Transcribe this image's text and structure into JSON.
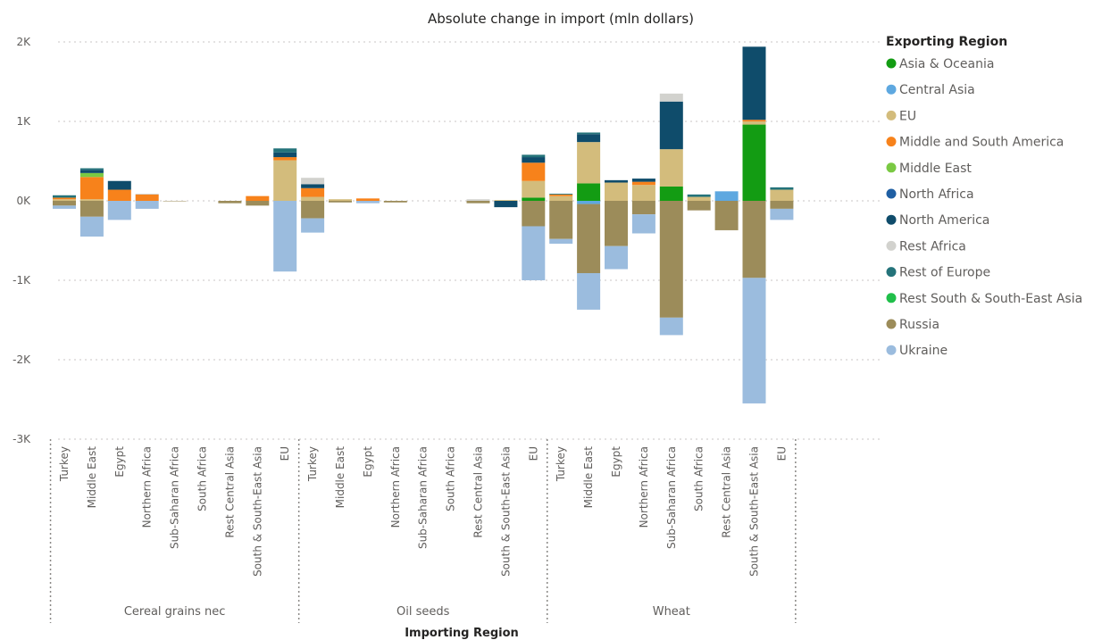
{
  "chart_data": {
    "type": "bar",
    "stacked": true,
    "title": "Absolute change in import (mln dollars)",
    "xlabel": "Importing Region",
    "ylabel": "",
    "ylim": [
      -3000,
      2000
    ],
    "yticks": [
      {
        "value": 2000,
        "label": "2K"
      },
      {
        "value": 1000,
        "label": "1K"
      },
      {
        "value": 0,
        "label": "0K"
      },
      {
        "value": -1000,
        "label": "-1K"
      },
      {
        "value": -2000,
        "label": "-2K"
      },
      {
        "value": -3000,
        "label": "-3K"
      }
    ],
    "grid": true,
    "legend_title": "Exporting Region",
    "legend_position": "right",
    "series": [
      {
        "name": "Asia & Oceania",
        "color": "#139c13"
      },
      {
        "name": "Central Asia",
        "color": "#5ea8e0"
      },
      {
        "name": "EU",
        "color": "#d3bc7c"
      },
      {
        "name": "Middle and South America",
        "color": "#f7821b"
      },
      {
        "name": "Middle East",
        "color": "#7ac943"
      },
      {
        "name": "North Africa",
        "color": "#1f5fa3"
      },
      {
        "name": "North America",
        "color": "#0f4c6b"
      },
      {
        "name": "Rest Africa",
        "color": "#d2d2ce"
      },
      {
        "name": "Rest of Europe",
        "color": "#24737a"
      },
      {
        "name": "Rest South & South-East Asia",
        "color": "#20bf4a"
      },
      {
        "name": "Russia",
        "color": "#9c8c5a"
      },
      {
        "name": "Ukraine",
        "color": "#9bbcde"
      }
    ],
    "groups": [
      {
        "name": "Cereal grains nec",
        "categories": [
          {
            "name": "Turkey",
            "segments": {
              "Middle and South America": 20,
              "Rest of Europe": 30,
              "EU": 20,
              "Russia": -60,
              "Ukraine": -40
            }
          },
          {
            "name": "Middle East",
            "segments": {
              "Middle East": 50,
              "Middle and South America": 280,
              "EU": 20,
              "North America": 40,
              "Rest of Europe": 20,
              "Russia": -200,
              "Ukraine": -250
            }
          },
          {
            "name": "Egypt",
            "segments": {
              "Middle and South America": 140,
              "North America": 110,
              "Ukraine": -240
            }
          },
          {
            "name": "Northern Africa",
            "segments": {
              "Middle and South America": 80,
              "Rest Africa": 10,
              "Ukraine": -100
            }
          },
          {
            "name": "Sub-Saharan Africa",
            "segments": {
              "Russia": -5
            }
          },
          {
            "name": "South Africa",
            "segments": {}
          },
          {
            "name": "Rest Central Asia",
            "segments": {
              "Russia": -30
            }
          },
          {
            "name": "South & South-East Asia",
            "segments": {
              "Middle and South America": 60,
              "Russia": -60
            }
          },
          {
            "name": "EU",
            "segments": {
              "EU": 510,
              "Middle and South America": 40,
              "North America": 60,
              "Rest of Europe": 50,
              "Ukraine": -890
            }
          }
        ]
      },
      {
        "name": "Oil seeds",
        "categories": [
          {
            "name": "Turkey",
            "segments": {
              "EU": 50,
              "Middle and South America": 110,
              "North America": 50,
              "Rest Africa": 80,
              "Russia": -220,
              "Ukraine": -180
            }
          },
          {
            "name": "Middle East",
            "segments": {
              "EU": 20,
              "Russia": -20
            }
          },
          {
            "name": "Egypt",
            "segments": {
              "Middle and South America": 30,
              "Ukraine": -30
            }
          },
          {
            "name": "Northern Africa",
            "segments": {
              "Russia": -20
            }
          },
          {
            "name": "Sub-Saharan Africa",
            "segments": {}
          },
          {
            "name": "South Africa",
            "segments": {}
          },
          {
            "name": "Rest Central Asia",
            "segments": {
              "Rest Africa": 20,
              "Russia": -30
            }
          },
          {
            "name": "South & South-East Asia",
            "segments": {
              "EU": 10,
              "North America": -80
            }
          },
          {
            "name": "EU",
            "segments": {
              "Asia & Oceania": 40,
              "EU": 210,
              "Middle and South America": 230,
              "North America": 70,
              "Rest of Europe": 30,
              "Russia": -320,
              "Ukraine": -680
            }
          }
        ]
      },
      {
        "name": "Wheat",
        "categories": [
          {
            "name": "Turkey",
            "segments": {
              "EU": 60,
              "Middle and South America": 20,
              "Rest of Europe": 10,
              "Russia": -480,
              "Ukraine": -60
            }
          },
          {
            "name": "Middle East",
            "segments": {
              "Asia & Oceania": 220,
              "EU": 520,
              "Rest of Europe": 20,
              "North America": 100,
              "Central Asia": -40,
              "Russia": -870,
              "Ukraine": -460
            }
          },
          {
            "name": "Egypt",
            "segments": {
              "EU": 230,
              "North America": 30,
              "Russia": -570,
              "Ukraine": -290
            }
          },
          {
            "name": "Northern Africa",
            "segments": {
              "EU": 200,
              "Middle and South America": 40,
              "North America": 40,
              "Russia": -170,
              "Ukraine": -240
            }
          },
          {
            "name": "Sub-Saharan Africa",
            "segments": {
              "Asia & Oceania": 180,
              "EU": 470,
              "North America": 600,
              "Rest Africa": 100,
              "Russia": -1470,
              "Ukraine": -220
            }
          },
          {
            "name": "South Africa",
            "segments": {
              "EU": 50,
              "Rest of Europe": 30,
              "Russia": -120
            }
          },
          {
            "name": "Rest Central Asia",
            "segments": {
              "Central Asia": 120,
              "Russia": -370
            }
          },
          {
            "name": "South & South-East Asia",
            "segments": {
              "Asia & Oceania": 960,
              "Middle and South America": 20,
              "EU": 40,
              "North America": 920,
              "Russia": -970,
              "Ukraine": -1580
            }
          },
          {
            "name": "EU",
            "segments": {
              "EU": 140,
              "Rest of Europe": 30,
              "Russia": -100,
              "Ukraine": -140
            }
          }
        ]
      }
    ]
  }
}
